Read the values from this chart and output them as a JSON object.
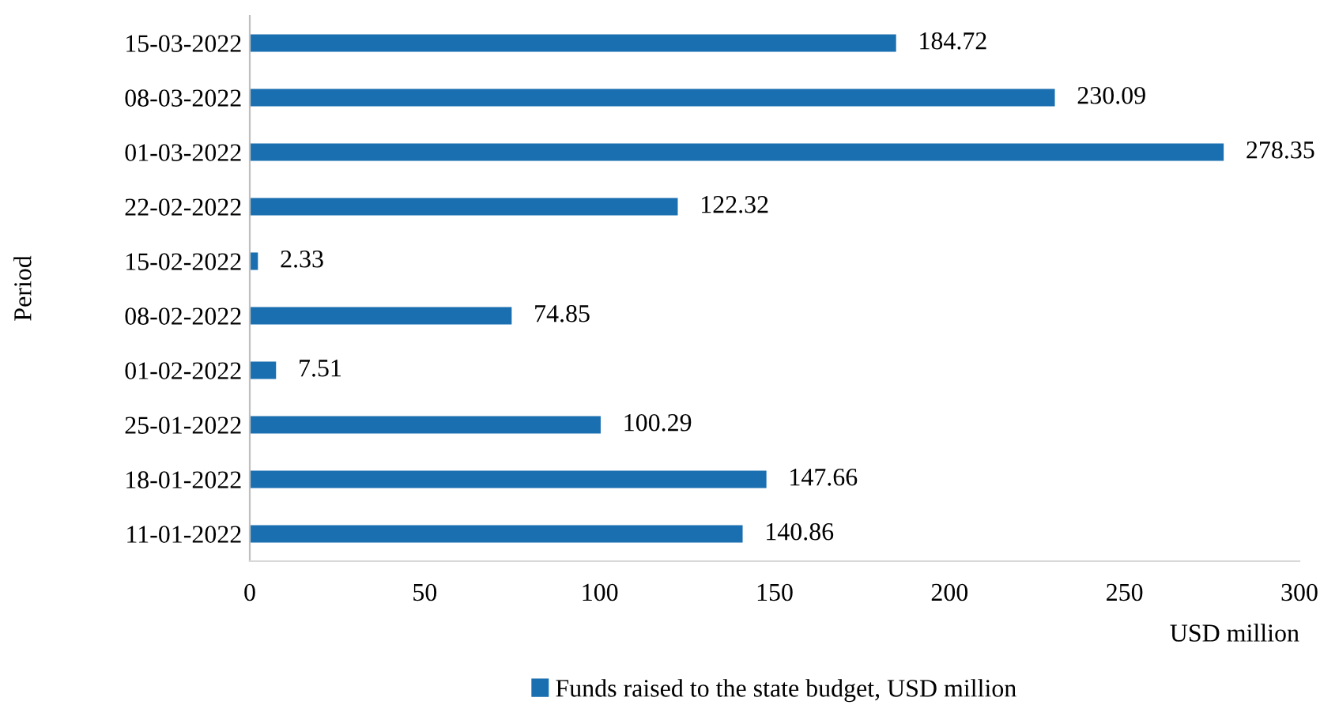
{
  "chart_data": {
    "type": "bar",
    "orientation": "horizontal",
    "ylabel": "Period",
    "xlabel": "USD million",
    "categories": [
      "15-03-2022",
      "08-03-2022",
      "01-03-2022",
      "22-02-2022",
      "15-02-2022",
      "08-02-2022",
      "01-02-2022",
      "25-01-2022",
      "18-01-2022",
      "11-01-2022"
    ],
    "series": [
      {
        "name": "Funds raised to the state budget, USD million",
        "color": "#1a6fb0",
        "values": [
          184.72,
          230.09,
          278.35,
          122.32,
          2.33,
          74.85,
          7.51,
          100.29,
          147.66,
          140.86
        ]
      }
    ],
    "xlim": [
      0,
      300
    ],
    "xticks": [
      0,
      50,
      100,
      150,
      200,
      250,
      300
    ],
    "data_labels": true,
    "grid": false,
    "legend": "bottom"
  }
}
